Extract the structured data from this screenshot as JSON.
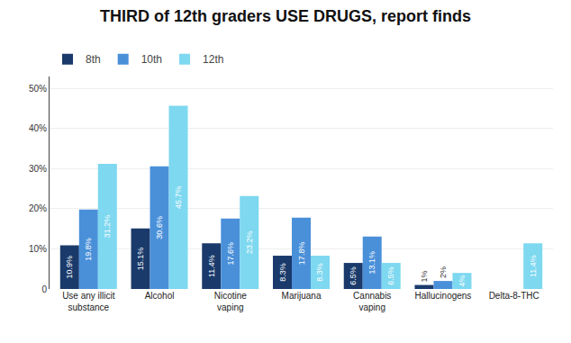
{
  "chart_data": {
    "type": "bar",
    "title": "THIRD of 12th graders USE DRUGS, report finds",
    "categories": [
      "Use any illicit\nsubstance",
      "Alcohol",
      "Nicotine\nvaping",
      "Marijuana",
      "Cannabis\nvaping",
      "Hallucinogens",
      "Delta-8-THC"
    ],
    "series": [
      {
        "name": "8th",
        "color": "#1a3a6b",
        "values": [
          10.9,
          15.1,
          11.4,
          8.3,
          6.5,
          1.0,
          0.0
        ],
        "value_labels": [
          "10.9%",
          "15.1%",
          "11.4%",
          "8.3%",
          "6.5%",
          "1%",
          null
        ]
      },
      {
        "name": "10th",
        "color": "#4a90d9",
        "values": [
          19.8,
          30.6,
          17.6,
          17.8,
          13.1,
          2.0,
          0.0
        ],
        "value_labels": [
          "19.8%",
          "30.6%",
          "17.6%",
          "17.8%",
          "13.1%",
          "2%",
          null
        ]
      },
      {
        "name": "12th",
        "color": "#7dd8f0",
        "values": [
          31.2,
          45.7,
          23.2,
          8.3,
          6.5,
          4.0,
          11.4
        ],
        "value_labels": [
          "31.2%",
          "45.7%",
          "23.2%",
          "8.3%",
          "6.5%",
          "4%",
          "11.4%"
        ]
      }
    ],
    "ylim": [
      0,
      53
    ],
    "yticks": [
      0,
      {
        "value": 10,
        "label": "10%"
      },
      {
        "value": 20,
        "label": "20%"
      },
      {
        "value": 30,
        "label": "30%"
      },
      {
        "value": 40,
        "label": "40%"
      },
      {
        "value": 50,
        "label": "50%"
      }
    ],
    "grid": true,
    "legend": "top",
    "data_labels": true
  }
}
